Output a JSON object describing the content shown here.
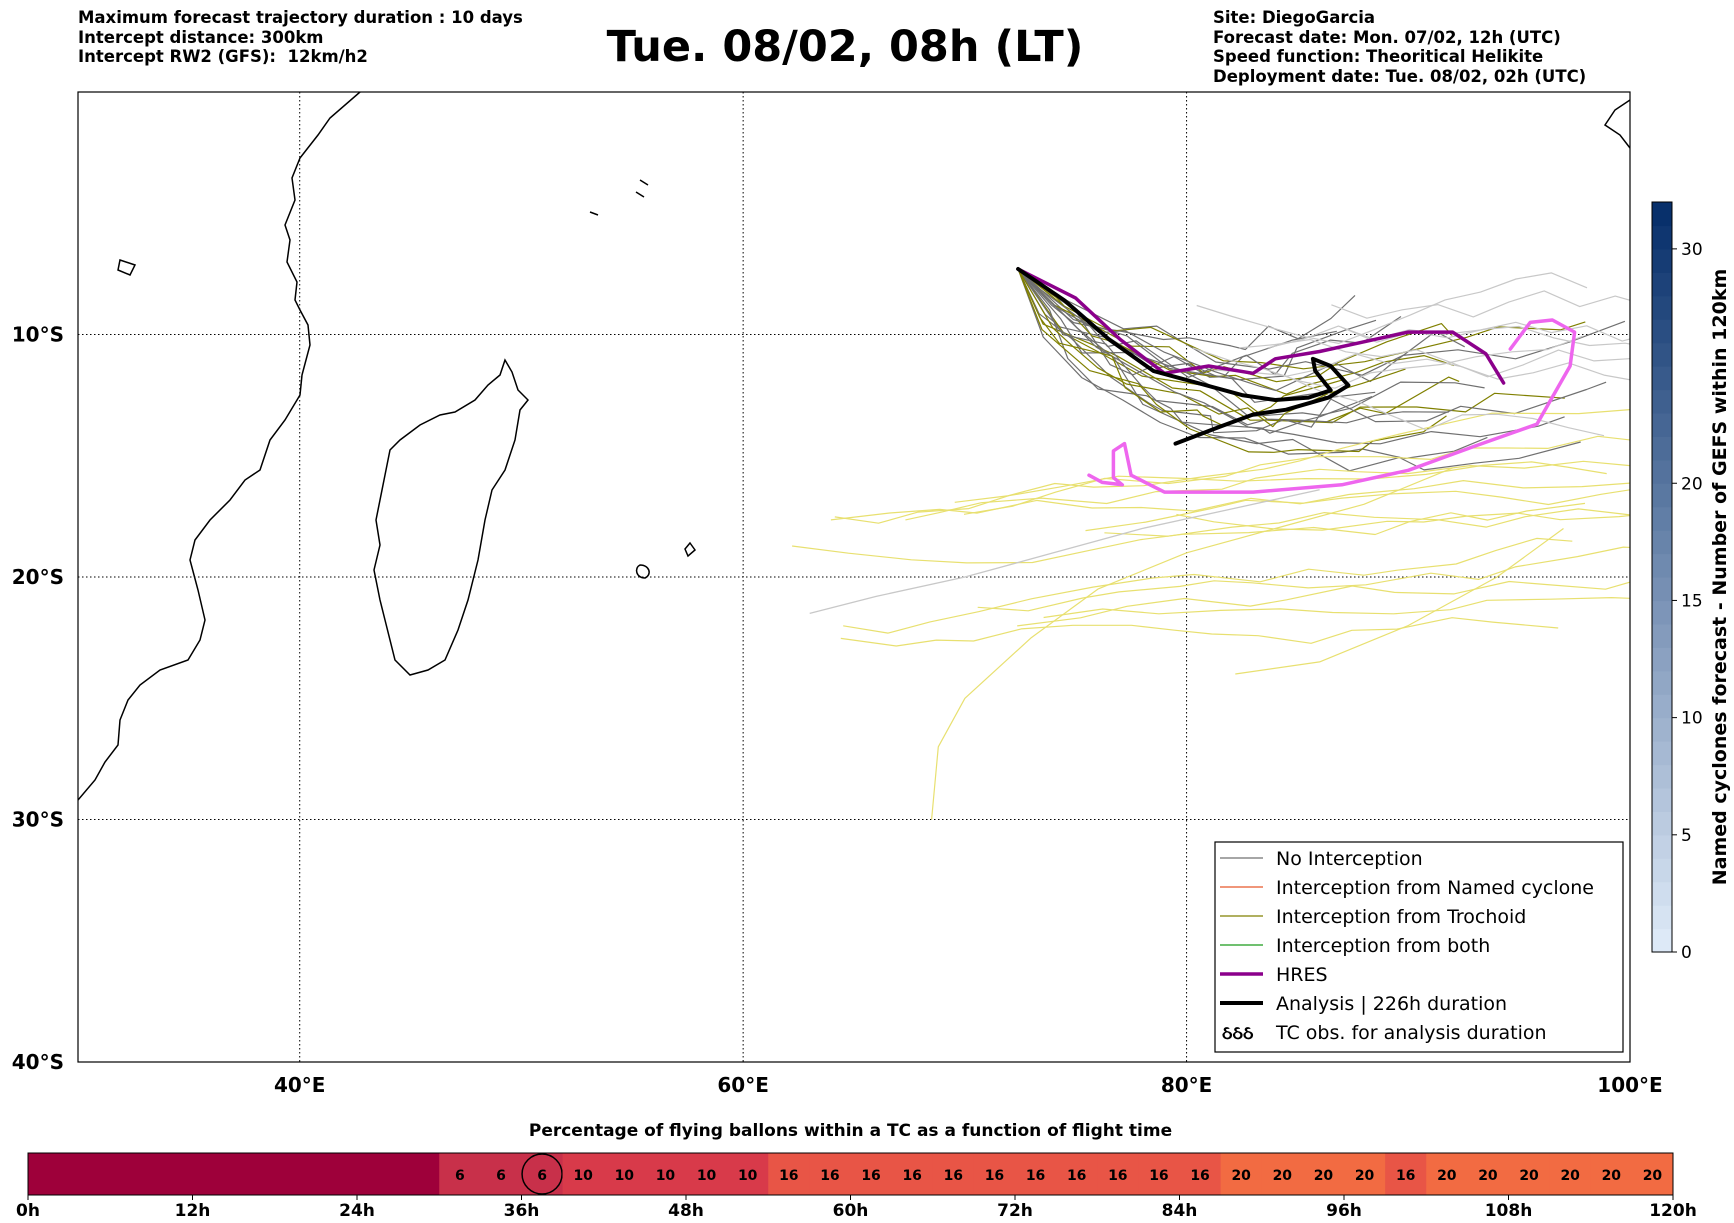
{
  "header": {
    "left_lines": [
      "Maximum forecast trajectory duration : 10 days",
      "Intercept distance: 300km",
      "Intercept RW2 (GFS):  12km/h2"
    ],
    "title": "Tue. 08/02, 08h (LT)",
    "right_lines": [
      "Site: DiegoGarcia",
      "Forecast date: Mon. 07/02, 12h (UTC)",
      "Speed function: Theoritical Helikite",
      "Deployment date: Tue. 08/02, 02h (UTC)"
    ]
  },
  "colors": {
    "no_interception": "#707070",
    "named_cyclone": "#e8582a",
    "trochoid": "#808000",
    "both": "#1a9a1a",
    "hres": "#8b008b",
    "analysis": "#000000",
    "hres_light": "#ee66ee",
    "ensemble_light_gray": "#c8c8c8",
    "ensemble_yellow": "#e8e070"
  },
  "chart_data": [
    {
      "type": "map-trajectories",
      "map": {
        "lon_range": [
          30,
          100
        ],
        "lat_range": [
          -40,
          0
        ],
        "x_ticks": [
          {
            "v": 40,
            "label": "40°E"
          },
          {
            "v": 60,
            "label": "60°E"
          },
          {
            "v": 80,
            "label": "80°E"
          },
          {
            "v": 100,
            "label": "100°E"
          }
        ],
        "y_ticks": [
          {
            "v": -10,
            "label": "10°S"
          },
          {
            "v": -20,
            "label": "20°S"
          },
          {
            "v": -30,
            "label": "30°S"
          },
          {
            "v": -40,
            "label": "40°S"
          }
        ],
        "grid": true,
        "launch_site": [
          72.4,
          -7.3
        ]
      },
      "series": [
        {
          "name": "HRES",
          "style": "hres",
          "points": [
            [
              72.4,
              -7.3
            ],
            [
              75,
              -8.5
            ],
            [
              77,
              -10.2
            ],
            [
              79,
              -11.6
            ],
            [
              81,
              -11.3
            ],
            [
              83,
              -11.6
            ],
            [
              84,
              -11.0
            ],
            [
              86,
              -10.7
            ],
            [
              88,
              -10.3
            ],
            [
              90,
              -9.9
            ],
            [
              92,
              -9.9
            ],
            [
              93.5,
              -10.8
            ],
            [
              94.3,
              -12.0
            ]
          ]
        },
        {
          "name": "Analysis | 226h duration",
          "style": "analysis",
          "points": [
            [
              72.4,
              -7.3
            ],
            [
              74.5,
              -8.6
            ],
            [
              76.5,
              -10.2
            ],
            [
              78.5,
              -11.5
            ],
            [
              80.5,
              -12.0
            ],
            [
              82.5,
              -12.5
            ],
            [
              84,
              -12.7
            ],
            [
              85.5,
              -12.6
            ],
            [
              86.5,
              -12.3
            ],
            [
              85.8,
              -11.5
            ],
            [
              85.7,
              -11.0
            ],
            [
              86.5,
              -11.3
            ],
            [
              87.3,
              -12.1
            ],
            [
              86.4,
              -12.6
            ],
            [
              84.5,
              -13.1
            ],
            [
              83,
              -13.3
            ],
            [
              81.5,
              -13.8
            ],
            [
              79.5,
              -14.5
            ]
          ]
        },
        {
          "name": "",
          "style": "hres_light",
          "points": [
            [
              94.6,
              -10.6
            ],
            [
              95.5,
              -9.5
            ],
            [
              96.5,
              -9.4
            ],
            [
              97.5,
              -9.9
            ],
            [
              97.3,
              -11.3
            ],
            [
              95.8,
              -13.7
            ],
            [
              93,
              -14.6
            ],
            [
              90,
              -15.6
            ],
            [
              87,
              -16.2
            ],
            [
              83,
              -16.5
            ],
            [
              79,
              -16.5
            ],
            [
              77.5,
              -15.8
            ],
            [
              77.2,
              -14.5
            ],
            [
              76.7,
              -14.8
            ],
            [
              76.7,
              -15.9
            ],
            [
              77.1,
              -16.2
            ],
            [
              76.2,
              -16.1
            ],
            [
              75.6,
              -15.8
            ]
          ]
        }
      ],
      "legend": [
        {
          "label": "No Interception",
          "style": "no_interception"
        },
        {
          "label": "Interception from Named cyclone",
          "style": "named_cyclone"
        },
        {
          "label": "Interception from Trochoid",
          "style": "trochoid"
        },
        {
          "label": "Interception from both",
          "style": "both"
        },
        {
          "label": "HRES",
          "style": "hres"
        },
        {
          "label": "Analysis | 226h duration",
          "style": "analysis"
        },
        {
          "label": "TC obs. for analysis duration",
          "style": "tc_obs",
          "symbol": "ઠઠઠ"
        }
      ],
      "legend_position": "lower-right"
    },
    {
      "type": "colorbar",
      "label": "Named cyclones forecast - Number of GEFS within 120km",
      "range": [
        0,
        32
      ],
      "ticks": [
        0,
        5,
        10,
        15,
        20,
        30
      ],
      "colors": [
        "#dde9f7",
        "#08306b"
      ]
    },
    {
      "type": "heatmap",
      "title": "Percentage of flying ballons within a TC as a function of flight time",
      "x_range": [
        0,
        120
      ],
      "x_ticks": [
        {
          "v": 0,
          "label": "0h"
        },
        {
          "v": 12,
          "label": "12h"
        },
        {
          "v": 24,
          "label": "24h"
        },
        {
          "v": 36,
          "label": "36h"
        },
        {
          "v": 48,
          "label": "48h"
        },
        {
          "v": 60,
          "label": "60h"
        },
        {
          "v": 72,
          "label": "72h"
        },
        {
          "v": 84,
          "label": "84h"
        },
        {
          "v": 96,
          "label": "96h"
        },
        {
          "v": 108,
          "label": "108h"
        },
        {
          "v": 120,
          "label": "120h"
        }
      ],
      "segments": [
        {
          "from": 0,
          "to": 30,
          "value": null,
          "color": "#9e003a"
        },
        {
          "from": 30,
          "to": 33,
          "value": 6,
          "color": "#c8304a"
        },
        {
          "from": 33,
          "to": 36,
          "value": 6,
          "color": "#c8304a"
        },
        {
          "from": 36,
          "to": 39,
          "value": 6,
          "color": "#c8304a",
          "circled": true
        },
        {
          "from": 39,
          "to": 42,
          "value": 10,
          "color": "#d83a4a"
        },
        {
          "from": 42,
          "to": 45,
          "value": 10,
          "color": "#d83a4a"
        },
        {
          "from": 45,
          "to": 48,
          "value": 10,
          "color": "#d83a4a"
        },
        {
          "from": 48,
          "to": 51,
          "value": 10,
          "color": "#d83a4a"
        },
        {
          "from": 51,
          "to": 54,
          "value": 10,
          "color": "#d83a4a"
        },
        {
          "from": 54,
          "to": 57,
          "value": 16,
          "color": "#e85546"
        },
        {
          "from": 57,
          "to": 60,
          "value": 16,
          "color": "#e85546"
        },
        {
          "from": 60,
          "to": 63,
          "value": 16,
          "color": "#e85546"
        },
        {
          "from": 63,
          "to": 66,
          "value": 16,
          "color": "#e85546"
        },
        {
          "from": 66,
          "to": 69,
          "value": 16,
          "color": "#e85546"
        },
        {
          "from": 69,
          "to": 72,
          "value": 16,
          "color": "#e85546"
        },
        {
          "from": 72,
          "to": 75,
          "value": 16,
          "color": "#e85546"
        },
        {
          "from": 75,
          "to": 78,
          "value": 16,
          "color": "#e85546"
        },
        {
          "from": 78,
          "to": 81,
          "value": 16,
          "color": "#e85546"
        },
        {
          "from": 81,
          "to": 84,
          "value": 16,
          "color": "#e85546"
        },
        {
          "from": 84,
          "to": 87,
          "value": 16,
          "color": "#e85546"
        },
        {
          "from": 87,
          "to": 90,
          "value": 20,
          "color": "#f26b42"
        },
        {
          "from": 90,
          "to": 93,
          "value": 20,
          "color": "#f26b42"
        },
        {
          "from": 93,
          "to": 96,
          "value": 20,
          "color": "#f26b42"
        },
        {
          "from": 96,
          "to": 99,
          "value": 20,
          "color": "#f26b42"
        },
        {
          "from": 99,
          "to": 102,
          "value": 16,
          "color": "#e85546"
        },
        {
          "from": 102,
          "to": 105,
          "value": 20,
          "color": "#f26b42"
        },
        {
          "from": 105,
          "to": 108,
          "value": 20,
          "color": "#f26b42"
        },
        {
          "from": 108,
          "to": 111,
          "value": 20,
          "color": "#f26b42"
        },
        {
          "from": 111,
          "to": 114,
          "value": 20,
          "color": "#f26b42"
        },
        {
          "from": 114,
          "to": 117,
          "value": 20,
          "color": "#f26b42"
        },
        {
          "from": 117,
          "to": 120,
          "value": 20,
          "color": "#f26b42"
        }
      ]
    }
  ]
}
